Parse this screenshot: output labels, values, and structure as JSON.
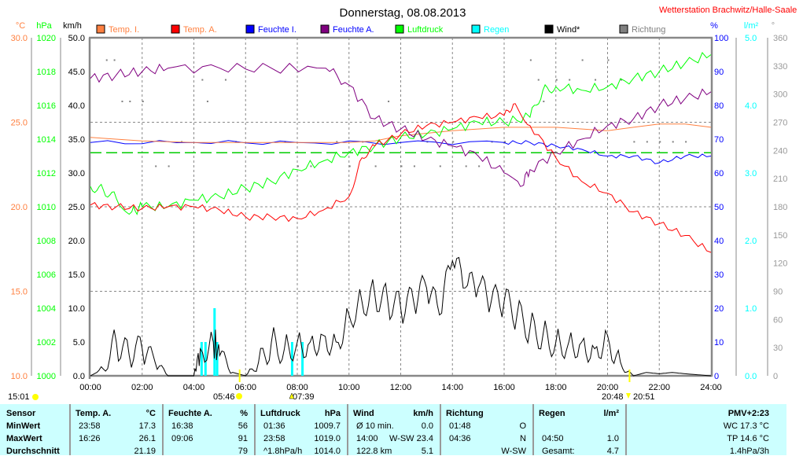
{
  "title": "Donnerstag, 08.08.2013",
  "station": "Wetterstation Brachwitz/Halle-Saale",
  "colors": {
    "temp_i": "#ff8040",
    "temp_a": "#ff0000",
    "feuchte_i": "#0000ff",
    "feuchte_a": "#800080",
    "luftdruck": "#00ff00",
    "regen": "#00ffff",
    "wind": "#000000",
    "richtung": "#808080",
    "avg_pressure_line": "#00cc00"
  },
  "chart_data": {
    "type": "line",
    "title": "Donnerstag, 08.08.2013",
    "legend_position": "top",
    "legend": [
      {
        "key": "temp_i",
        "label": "Temp. I.",
        "text_color": "#ff8040"
      },
      {
        "key": "temp_a",
        "label": "Temp. A.",
        "text_color": "#ff8040"
      },
      {
        "key": "feuchte_i",
        "label": "Feuchte I.",
        "text_color": "#0000ff"
      },
      {
        "key": "feuchte_a",
        "label": "Feuchte A.",
        "text_color": "#0000ff"
      },
      {
        "key": "luftdruck",
        "label": "Luftdruck",
        "text_color": "#00ff00"
      },
      {
        "key": "regen",
        "label": "Regen",
        "text_color": "#00ffff"
      },
      {
        "key": "wind",
        "label": "Wind*",
        "text_color": "#000000"
      },
      {
        "key": "richtung",
        "label": "Richtung",
        "text_color": "#808080"
      }
    ],
    "axes": {
      "temp": {
        "unit": "°C",
        "range": [
          10,
          30
        ],
        "ticks": [
          "30.0",
          "25.0",
          "20.0",
          "15.0",
          "10.0"
        ]
      },
      "pressure": {
        "unit": "hPa",
        "range": [
          1000,
          1020
        ],
        "ticks": [
          "1020",
          "1018",
          "1016",
          "1014",
          "1012",
          "1010",
          "1008",
          "1006",
          "1004",
          "1002",
          "1000"
        ]
      },
      "wind": {
        "unit": "km/h",
        "range": [
          0,
          50
        ],
        "ticks": [
          "50.0",
          "45.0",
          "40.0",
          "35.0",
          "30.0",
          "25.0",
          "20.0",
          "15.0",
          "10.0",
          "5.0",
          "0.0"
        ]
      },
      "humidity": {
        "unit": "%",
        "range": [
          0,
          100
        ],
        "ticks": [
          "100",
          "90",
          "80",
          "70",
          "60",
          "50",
          "40",
          "30",
          "20",
          "10",
          "0"
        ]
      },
      "rain": {
        "unit": "l/m²",
        "range": [
          0,
          5
        ],
        "ticks": [
          "5.0",
          "4.0",
          "3.0",
          "2.0",
          "1.0",
          "0.0"
        ]
      },
      "direction": {
        "unit": "°",
        "range": [
          0,
          360
        ],
        "ticks": [
          "360",
          "330",
          "300",
          "270",
          "240",
          "210",
          "180",
          "150",
          "120",
          "90",
          "60",
          "30",
          "0"
        ]
      },
      "x": {
        "range": [
          0,
          24
        ],
        "ticks": [
          "00:00",
          "02:00",
          "04:00",
          "06:00",
          "08:00",
          "10:00",
          "12:00",
          "14:00",
          "16:00",
          "18:00",
          "20:00",
          "22:00",
          "24:00"
        ]
      }
    },
    "series": {
      "temp_a": {
        "x": [
          0,
          1,
          2,
          3,
          4,
          5,
          6,
          7,
          8,
          9,
          10,
          10.5,
          11,
          12,
          13,
          14,
          15,
          16,
          16.43,
          17,
          18,
          19,
          20,
          21,
          22,
          23,
          24
        ],
        "y": [
          20.1,
          20.0,
          19.9,
          20.0,
          20.0,
          19.8,
          19.4,
          19.4,
          19.3,
          19.8,
          20.6,
          22.9,
          23.6,
          24.3,
          24.8,
          25.0,
          25.3,
          25.4,
          26.1,
          24.8,
          22.9,
          21.5,
          20.8,
          19.7,
          19.0,
          18.3,
          17.3
        ]
      },
      "temp_i": {
        "x": [
          0,
          2,
          4,
          6,
          8,
          10,
          11,
          12,
          14,
          16,
          18,
          20,
          21,
          22,
          23,
          24
        ],
        "y": [
          24.1,
          23.9,
          23.8,
          23.8,
          23.8,
          23.8,
          23.9,
          24.2,
          24.5,
          24.7,
          24.7,
          24.5,
          24.7,
          24.9,
          24.9,
          24.7
        ]
      },
      "feuchte_a": {
        "x": [
          0,
          1,
          2,
          3,
          5,
          7,
          9.1,
          10,
          11,
          12,
          13,
          14,
          15,
          16,
          16.63,
          17,
          18,
          19,
          20,
          21,
          22,
          23,
          24
        ],
        "y": [
          88,
          89,
          90,
          91,
          91,
          91,
          91,
          86,
          76,
          73,
          70,
          68,
          65,
          60,
          56,
          61,
          66,
          70,
          74,
          76,
          80,
          82,
          84
        ]
      },
      "feuchte_i": {
        "x": [
          0,
          4,
          8,
          12,
          16,
          17,
          18,
          19,
          20,
          21,
          22,
          23,
          24
        ],
        "y": [
          69,
          69,
          69,
          69,
          69,
          69,
          68,
          67,
          65,
          65,
          63,
          65,
          65
        ]
      },
      "luftdruck": {
        "x": [
          0,
          0.5,
          1,
          1.6,
          2,
          3,
          4,
          5,
          6,
          7,
          8,
          9,
          10,
          11,
          12,
          13,
          14,
          15,
          16,
          17,
          17.5,
          18,
          19,
          20,
          21,
          22,
          23,
          24
        ],
        "y": [
          1011.2,
          1011.0,
          1010.5,
          1009.7,
          1010.0,
          1010.0,
          1010.4,
          1010.6,
          1011.1,
          1011.5,
          1012.2,
          1012.7,
          1013.2,
          1013.6,
          1014.1,
          1014.3,
          1014.6,
          1015.0,
          1015.0,
          1015.3,
          1016.9,
          1017.1,
          1016.9,
          1017.1,
          1017.6,
          1018.0,
          1018.5,
          1019.0
        ]
      },
      "wind": {
        "x": [
          0,
          0.5,
          1,
          1.5,
          2,
          2.5,
          3,
          4,
          4.25,
          4.75,
          5,
          5.5,
          6,
          6.5,
          7,
          7.5,
          8,
          8.5,
          9,
          9.5,
          10,
          10.5,
          11,
          11.5,
          12,
          12.5,
          13,
          13.5,
          14,
          14.5,
          15,
          15.5,
          16,
          16.5,
          17,
          17.5,
          18,
          18.5,
          19,
          19.5,
          20,
          20.5,
          21,
          21.5,
          22,
          22.5,
          23,
          24
        ],
        "y": [
          0,
          1,
          5,
          3,
          4,
          2,
          0,
          0,
          4,
          5,
          3,
          0.5,
          0,
          2,
          5,
          4,
          5,
          5,
          6,
          5,
          9,
          11,
          12,
          11,
          10,
          11,
          13,
          9,
          17,
          13,
          13,
          11,
          11,
          9,
          7,
          6,
          5,
          5,
          5,
          4,
          6,
          2,
          0,
          0.5,
          0.3,
          0.5,
          0.3,
          0
        ]
      },
      "regen": {
        "x": [
          4.3,
          4.45,
          4.8,
          4.9,
          7.8,
          8.2
        ],
        "y": [
          0.5,
          0.5,
          1.0,
          0.5,
          0.5,
          0.5
        ]
      },
      "richtung": {
        "x": [
          0.6,
          0.9,
          1.2,
          1.5,
          2,
          2.5,
          3,
          3.5,
          4.3,
          4.5,
          5.2,
          5.6,
          7.5,
          8,
          8.5,
          9.5,
          10,
          10.5,
          11,
          11.5,
          12,
          12.5,
          13,
          13.5,
          14,
          14.5,
          15,
          15.5,
          16,
          17,
          17.3,
          17.5,
          18,
          18.5,
          19,
          19.5,
          20,
          20.5,
          21,
          21.5,
          22,
          22.5,
          23
        ],
        "y": [
          337,
          337,
          293,
          293,
          293,
          224,
          224,
          250,
          316,
          293,
          316,
          250,
          250,
          224,
          224,
          250,
          224,
          250,
          224,
          293,
          224,
          224,
          250,
          224,
          250,
          224,
          224,
          250,
          250,
          337,
          316,
          293,
          316,
          316,
          337,
          316,
          337,
          316,
          250,
          250,
          250,
          250,
          250
        ]
      }
    },
    "avg_pressure": 1013.2,
    "sun_moon": {
      "moon_set": "15:01",
      "sunrise": "05:46",
      "moon_rise": "07:39",
      "sunset_a": "20:48",
      "sunset_b": "20:51"
    },
    "sun_marker_hours": [
      5.77,
      20.85
    ]
  },
  "stats": {
    "headers": {
      "sensor": "Sensor",
      "temp": "Temp. A.",
      "temp_unit": "°C",
      "hum": "Feuchte A.",
      "hum_unit": "%",
      "press": "Luftdruck",
      "press_unit": "hPa",
      "wind": "Wind",
      "wind_unit": "km/h",
      "dir": "Richtung",
      "rain": "Regen",
      "rain_unit": "l/m²",
      "pmv": "PMV+2:23"
    },
    "rows": [
      "MinWert",
      "MaxWert",
      "Durchschnitt"
    ],
    "temp": [
      [
        "23:58",
        "17.3"
      ],
      [
        "16:26",
        "26.1"
      ],
      [
        "",
        "21.19"
      ]
    ],
    "hum": [
      [
        "16:38",
        "56"
      ],
      [
        "09:06",
        "91"
      ],
      [
        "",
        "79"
      ]
    ],
    "press": [
      [
        "01:36",
        "1009.7"
      ],
      [
        "23:58",
        "1019.0"
      ],
      [
        "^1.8hPa/h",
        "1014.0"
      ]
    ],
    "wind": [
      [
        "Ø 10 min.",
        "0.0"
      ],
      [
        "14:00",
        "W-SW 23.4"
      ],
      [
        "122.8 km",
        "5.1"
      ]
    ],
    "dir": [
      [
        "01:48",
        "O"
      ],
      [
        "04:36",
        "N"
      ],
      [
        "",
        "W-SW"
      ]
    ],
    "rain": [
      [
        "",
        ""
      ],
      [
        "04:50",
        "1.0"
      ],
      [
        "Gesamt:",
        "4.7"
      ]
    ],
    "extra": [
      "WC 17.3 °C",
      "TP 14.6 °C",
      "1.4hPa/3h"
    ]
  }
}
